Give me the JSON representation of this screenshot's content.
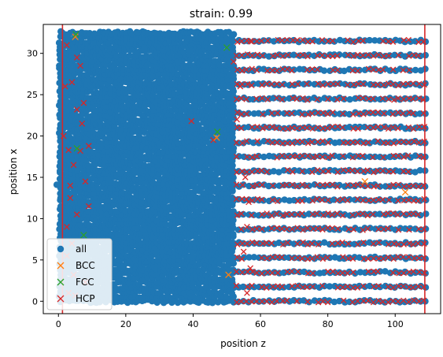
{
  "chart_data": {
    "type": "scatter",
    "title": "strain: 0.99",
    "xlabel": "position z",
    "ylabel": "position x",
    "xlim": [
      -4.5,
      113.5
    ],
    "ylim": [
      -1.5,
      33.5
    ],
    "xticks": [
      "0",
      "20",
      "40",
      "60",
      "80",
      "100"
    ],
    "xtick_values": [
      0,
      20,
      40,
      60,
      80,
      100
    ],
    "yticks": [
      "0",
      "5",
      "10",
      "15",
      "20",
      "25",
      "30"
    ],
    "ytick_values": [
      0,
      5,
      10,
      15,
      20,
      25,
      30
    ],
    "grid": false,
    "legend_position": "lower-left",
    "vlines": [
      {
        "x": 1.2,
        "color": "#d62728"
      },
      {
        "x": 108.8,
        "color": "#d62728"
      }
    ],
    "series": [
      {
        "name": "all",
        "marker": "circle",
        "color": "#1f77b4",
        "regions": [
          {
            "z": [
              0.5,
              52
            ],
            "x": [
              0,
              32.5
            ],
            "pattern": "dense"
          },
          {
            "z": [
              52,
              109
            ],
            "x": [
              0,
              32.5
            ],
            "pattern": "lattice",
            "z_spacing": 1.5,
            "x_spacing": 1.75
          }
        ],
        "outliers": [
          [
            -0.5,
            14.1
          ],
          [
            0.2,
            0.6
          ]
        ]
      },
      {
        "name": "BCC",
        "marker": "x",
        "color": "#ff7f0e",
        "points": [
          [
            47,
            19.8
          ],
          [
            50.5,
            3.2
          ],
          [
            5,
            32
          ],
          [
            103,
            13.2
          ],
          [
            91,
            14.5
          ]
        ]
      },
      {
        "name": "FCC",
        "marker": "x",
        "color": "#2ca02c",
        "points": [
          [
            47.2,
            20.5
          ],
          [
            50,
            30.7
          ],
          [
            5.2,
            32.3
          ],
          [
            7.5,
            8
          ],
          [
            5.5,
            18.5
          ]
        ]
      },
      {
        "name": "HCP",
        "marker": "x",
        "color": "#d62728",
        "regions": [
          {
            "z": [
              53,
              109
            ],
            "x": [
              0,
              32.5
            ],
            "pattern": "lattice",
            "z_spacing": 1.5,
            "x_spacing": 1.75
          }
        ],
        "points": [
          [
            39.5,
            21.8
          ],
          [
            46,
            19.5
          ],
          [
            54,
            26
          ],
          [
            53,
            22
          ],
          [
            52,
            29
          ],
          [
            1.5,
            20
          ],
          [
            2,
            26
          ],
          [
            2.5,
            9
          ],
          [
            3.5,
            14
          ],
          [
            4,
            7
          ],
          [
            5.5,
            29.5
          ],
          [
            6.5,
            18.2
          ],
          [
            7.5,
            24
          ],
          [
            8,
            2.3
          ],
          [
            9,
            18.8
          ],
          [
            5.5,
            23.2
          ],
          [
            4.5,
            3.2
          ],
          [
            5.5,
            10.5
          ],
          [
            4.5,
            16.5
          ],
          [
            3.5,
            12.5
          ],
          [
            2.5,
            5.5
          ],
          [
            6.5,
            28.5
          ],
          [
            2.5,
            31
          ],
          [
            4,
            26.5
          ],
          [
            8,
            14.5
          ],
          [
            7,
            21.5
          ],
          [
            3,
            1
          ],
          [
            5,
            0.7
          ],
          [
            9,
            11.5
          ],
          [
            3,
            18.3
          ],
          [
            57,
            4
          ],
          [
            56,
            9
          ],
          [
            55.5,
            15
          ],
          [
            56.5,
            12
          ],
          [
            55,
            6
          ],
          [
            56,
            1
          ],
          [
            57,
            31.5
          ]
        ]
      }
    ]
  }
}
